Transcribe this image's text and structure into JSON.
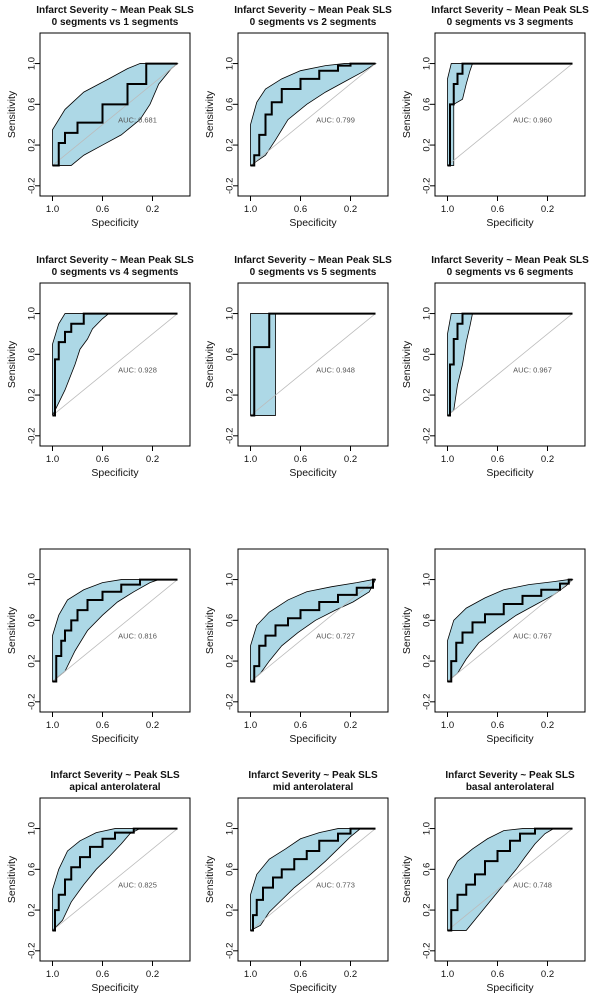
{
  "axes": {
    "xlabel": "Specificity",
    "ylabel": "Sensitivity",
    "x_ticks": [
      "1.0",
      "0.6",
      "0.2"
    ],
    "y_ticks": [
      "-0.2",
      "0.2",
      "0.6",
      "1.0"
    ],
    "x_tick_values": [
      1.0,
      0.6,
      0.2
    ],
    "y_tick_values": [
      -0.2,
      0.2,
      0.6,
      1.0
    ],
    "xlim": [
      1.1,
      -0.1
    ],
    "ylim": [
      -0.3,
      1.3
    ]
  },
  "colors": {
    "ci_band": "#add8e6",
    "roc_line": "#000000",
    "diagonal": "#bbbbbb",
    "auc_text": "#555555"
  },
  "chart_data": [
    {
      "type": "line",
      "title": "Infarct Severity ~ Mean Peak SLS",
      "subtitle": "0 segments vs 1 segments",
      "auc_label": "AUC: 0.681",
      "x": [
        1.0,
        0.95,
        0.95,
        0.9,
        0.9,
        0.8,
        0.8,
        0.6,
        0.6,
        0.4,
        0.4,
        0.25,
        0.25,
        0.0
      ],
      "y": [
        0.0,
        0.0,
        0.22,
        0.22,
        0.32,
        0.32,
        0.42,
        0.42,
        0.6,
        0.6,
        0.8,
        0.8,
        1.0,
        1.0
      ],
      "ci_upper": [
        [
          1.0,
          0.0
        ],
        [
          1.0,
          0.35
        ],
        [
          0.9,
          0.55
        ],
        [
          0.75,
          0.72
        ],
        [
          0.55,
          0.85
        ],
        [
          0.4,
          0.95
        ],
        [
          0.3,
          1.0
        ],
        [
          0.0,
          1.0
        ]
      ],
      "ci_lower": [
        [
          1.0,
          0.0
        ],
        [
          0.85,
          0.0
        ],
        [
          0.75,
          0.1
        ],
        [
          0.6,
          0.2
        ],
        [
          0.45,
          0.3
        ],
        [
          0.3,
          0.45
        ],
        [
          0.22,
          0.6
        ],
        [
          0.15,
          0.8
        ],
        [
          0.05,
          0.95
        ],
        [
          0.0,
          1.0
        ]
      ]
    },
    {
      "type": "line",
      "title": "Infarct Severity ~ Mean Peak SLS",
      "subtitle": "0 segments vs 2 segments",
      "auc_label": "AUC: 0.799",
      "x": [
        1.0,
        0.97,
        0.97,
        0.93,
        0.93,
        0.88,
        0.88,
        0.83,
        0.83,
        0.75,
        0.75,
        0.6,
        0.6,
        0.45,
        0.45,
        0.3,
        0.3,
        0.2,
        0.2,
        0.0
      ],
      "y": [
        0.0,
        0.0,
        0.1,
        0.1,
        0.3,
        0.3,
        0.5,
        0.5,
        0.62,
        0.62,
        0.75,
        0.75,
        0.85,
        0.85,
        0.93,
        0.93,
        0.98,
        0.98,
        1.0,
        1.0
      ],
      "ci_upper": [
        [
          1.0,
          0.0
        ],
        [
          1.0,
          0.4
        ],
        [
          0.95,
          0.62
        ],
        [
          0.88,
          0.75
        ],
        [
          0.75,
          0.85
        ],
        [
          0.6,
          0.93
        ],
        [
          0.4,
          0.98
        ],
        [
          0.25,
          1.0
        ],
        [
          0.0,
          1.0
        ]
      ],
      "ci_lower": [
        [
          1.0,
          0.0
        ],
        [
          0.88,
          0.1
        ],
        [
          0.8,
          0.25
        ],
        [
          0.7,
          0.45
        ],
        [
          0.55,
          0.6
        ],
        [
          0.4,
          0.72
        ],
        [
          0.25,
          0.82
        ],
        [
          0.1,
          0.92
        ],
        [
          0.0,
          1.0
        ]
      ]
    },
    {
      "type": "line",
      "title": "Infarct Severity ~ Mean Peak SLS",
      "subtitle": "0 segments vs 3 segments",
      "auc_label": "AUC: 0.960",
      "x": [
        1.0,
        0.98,
        0.98,
        0.95,
        0.95,
        0.92,
        0.92,
        0.88,
        0.88,
        0.0
      ],
      "y": [
        0.0,
        0.0,
        0.6,
        0.6,
        0.8,
        0.8,
        0.9,
        0.9,
        1.0,
        1.0
      ],
      "ci_upper": [
        [
          1.0,
          0.0
        ],
        [
          1.0,
          0.85
        ],
        [
          0.97,
          1.0
        ],
        [
          0.0,
          1.0
        ]
      ],
      "ci_lower": [
        [
          1.0,
          0.0
        ],
        [
          0.95,
          0.0
        ],
        [
          0.95,
          0.6
        ],
        [
          0.88,
          0.65
        ],
        [
          0.85,
          0.8
        ],
        [
          0.82,
          0.93
        ],
        [
          0.8,
          1.0
        ],
        [
          0.0,
          1.0
        ]
      ]
    },
    {
      "type": "line",
      "title": "Infarct Severity ~ Mean Peak SLS",
      "subtitle": "0 segments vs 4 segments",
      "auc_label": "AUC: 0.928",
      "x": [
        1.0,
        0.98,
        0.98,
        0.95,
        0.95,
        0.9,
        0.9,
        0.85,
        0.85,
        0.75,
        0.75,
        0.0
      ],
      "y": [
        0.0,
        0.0,
        0.55,
        0.55,
        0.72,
        0.72,
        0.82,
        0.82,
        0.9,
        0.9,
        1.0,
        1.0
      ],
      "ci_upper": [
        [
          1.0,
          0.0
        ],
        [
          1.0,
          0.7
        ],
        [
          0.95,
          0.9
        ],
        [
          0.9,
          1.0
        ],
        [
          0.0,
          1.0
        ]
      ],
      "ci_lower": [
        [
          1.0,
          0.0
        ],
        [
          0.9,
          0.25
        ],
        [
          0.82,
          0.5
        ],
        [
          0.78,
          0.65
        ],
        [
          0.72,
          0.75
        ],
        [
          0.68,
          0.85
        ],
        [
          0.6,
          0.95
        ],
        [
          0.55,
          1.0
        ],
        [
          0.0,
          1.0
        ]
      ]
    },
    {
      "type": "line",
      "title": "Infarct Severity ~ Mean Peak SLS",
      "subtitle": "0 segments vs 5 segments",
      "auc_label": "AUC: 0.948",
      "x": [
        1.0,
        0.97,
        0.97,
        0.85,
        0.85,
        0.0
      ],
      "y": [
        0.0,
        0.0,
        0.67,
        0.67,
        1.0,
        1.0
      ],
      "ci_upper": [
        [
          1.0,
          0.0
        ],
        [
          1.0,
          1.0
        ],
        [
          0.0,
          1.0
        ]
      ],
      "ci_lower": [
        [
          1.0,
          0.0
        ],
        [
          0.8,
          0.0
        ],
        [
          0.8,
          1.0
        ],
        [
          0.0,
          1.0
        ]
      ]
    },
    {
      "type": "line",
      "title": "Infarct Severity ~ Mean Peak SLS",
      "subtitle": "0 segments vs 6 segments",
      "auc_label": "AUC: 0.967",
      "x": [
        1.0,
        0.98,
        0.98,
        0.95,
        0.95,
        0.92,
        0.92,
        0.88,
        0.88,
        0.0
      ],
      "y": [
        0.0,
        0.0,
        0.5,
        0.5,
        0.75,
        0.75,
        0.9,
        0.9,
        1.0,
        1.0
      ],
      "ci_upper": [
        [
          1.0,
          0.0
        ],
        [
          1.0,
          0.8
        ],
        [
          0.97,
          1.0
        ],
        [
          0.0,
          1.0
        ]
      ],
      "ci_lower": [
        [
          1.0,
          0.0
        ],
        [
          0.95,
          0.05
        ],
        [
          0.92,
          0.3
        ],
        [
          0.88,
          0.5
        ],
        [
          0.85,
          0.72
        ],
        [
          0.82,
          0.88
        ],
        [
          0.8,
          1.0
        ],
        [
          0.0,
          1.0
        ]
      ]
    },
    {
      "type": "line",
      "title": "",
      "subtitle": "",
      "auc_label": "AUC: 0.816",
      "x": [
        1.0,
        0.97,
        0.97,
        0.93,
        0.93,
        0.9,
        0.9,
        0.85,
        0.85,
        0.8,
        0.8,
        0.72,
        0.72,
        0.6,
        0.6,
        0.45,
        0.45,
        0.3,
        0.3,
        0.0
      ],
      "y": [
        0.0,
        0.0,
        0.25,
        0.25,
        0.4,
        0.4,
        0.5,
        0.5,
        0.6,
        0.6,
        0.7,
        0.7,
        0.8,
        0.8,
        0.88,
        0.88,
        0.95,
        0.95,
        1.0,
        1.0
      ],
      "ci_upper": [
        [
          1.0,
          0.0
        ],
        [
          1.0,
          0.45
        ],
        [
          0.95,
          0.65
        ],
        [
          0.88,
          0.8
        ],
        [
          0.75,
          0.9
        ],
        [
          0.6,
          0.97
        ],
        [
          0.45,
          1.0
        ],
        [
          0.0,
          1.0
        ]
      ],
      "ci_lower": [
        [
          1.0,
          0.0
        ],
        [
          0.9,
          0.1
        ],
        [
          0.82,
          0.3
        ],
        [
          0.72,
          0.5
        ],
        [
          0.6,
          0.65
        ],
        [
          0.48,
          0.78
        ],
        [
          0.35,
          0.88
        ],
        [
          0.22,
          0.97
        ],
        [
          0.15,
          1.0
        ],
        [
          0.0,
          1.0
        ]
      ]
    },
    {
      "type": "line",
      "title": "",
      "subtitle": "",
      "auc_label": "AUC: 0.727",
      "x": [
        1.0,
        0.97,
        0.97,
        0.93,
        0.93,
        0.88,
        0.88,
        0.8,
        0.8,
        0.7,
        0.7,
        0.6,
        0.6,
        0.45,
        0.45,
        0.3,
        0.3,
        0.15,
        0.15,
        0.02,
        0.02,
        0.0
      ],
      "y": [
        0.0,
        0.0,
        0.15,
        0.15,
        0.35,
        0.35,
        0.45,
        0.45,
        0.55,
        0.55,
        0.62,
        0.62,
        0.7,
        0.7,
        0.78,
        0.78,
        0.85,
        0.85,
        0.92,
        0.92,
        1.0,
        1.0
      ],
      "ci_upper": [
        [
          1.0,
          0.0
        ],
        [
          1.0,
          0.35
        ],
        [
          0.95,
          0.55
        ],
        [
          0.85,
          0.68
        ],
        [
          0.7,
          0.8
        ],
        [
          0.55,
          0.88
        ],
        [
          0.35,
          0.93
        ],
        [
          0.15,
          0.97
        ],
        [
          0.02,
          1.0
        ],
        [
          0.0,
          1.0
        ]
      ],
      "ci_lower": [
        [
          1.0,
          0.0
        ],
        [
          0.92,
          0.08
        ],
        [
          0.85,
          0.2
        ],
        [
          0.75,
          0.35
        ],
        [
          0.62,
          0.48
        ],
        [
          0.48,
          0.6
        ],
        [
          0.32,
          0.7
        ],
        [
          0.18,
          0.78
        ],
        [
          0.05,
          0.88
        ],
        [
          0.0,
          1.0
        ]
      ]
    },
    {
      "type": "line",
      "title": "",
      "subtitle": "",
      "auc_label": "AUC: 0.767",
      "x": [
        1.0,
        0.97,
        0.97,
        0.93,
        0.93,
        0.88,
        0.88,
        0.8,
        0.8,
        0.7,
        0.7,
        0.55,
        0.55,
        0.4,
        0.4,
        0.25,
        0.25,
        0.1,
        0.1,
        0.03,
        0.03,
        0.0
      ],
      "y": [
        0.0,
        0.0,
        0.2,
        0.2,
        0.38,
        0.38,
        0.48,
        0.48,
        0.58,
        0.58,
        0.66,
        0.66,
        0.76,
        0.76,
        0.84,
        0.84,
        0.9,
        0.9,
        0.96,
        0.96,
        1.0,
        1.0
      ],
      "ci_upper": [
        [
          1.0,
          0.0
        ],
        [
          1.0,
          0.4
        ],
        [
          0.95,
          0.6
        ],
        [
          0.85,
          0.72
        ],
        [
          0.7,
          0.82
        ],
        [
          0.55,
          0.9
        ],
        [
          0.35,
          0.95
        ],
        [
          0.15,
          0.98
        ],
        [
          0.03,
          1.0
        ],
        [
          0.0,
          1.0
        ]
      ],
      "ci_lower": [
        [
          1.0,
          0.0
        ],
        [
          0.92,
          0.08
        ],
        [
          0.85,
          0.22
        ],
        [
          0.75,
          0.38
        ],
        [
          0.6,
          0.52
        ],
        [
          0.45,
          0.65
        ],
        [
          0.3,
          0.75
        ],
        [
          0.15,
          0.85
        ],
        [
          0.05,
          0.94
        ],
        [
          0.0,
          1.0
        ]
      ]
    },
    {
      "type": "line",
      "title": "Infarct Severity ~ Peak SLS",
      "subtitle": "apical anterolateral",
      "auc_label": "AUC: 0.825",
      "x": [
        1.0,
        0.98,
        0.98,
        0.95,
        0.95,
        0.9,
        0.9,
        0.85,
        0.85,
        0.78,
        0.78,
        0.7,
        0.7,
        0.6,
        0.6,
        0.5,
        0.5,
        0.35,
        0.35,
        0.0
      ],
      "y": [
        0.0,
        0.0,
        0.2,
        0.2,
        0.35,
        0.35,
        0.5,
        0.5,
        0.62,
        0.62,
        0.72,
        0.72,
        0.82,
        0.82,
        0.9,
        0.9,
        0.96,
        0.96,
        1.0,
        1.0
      ],
      "ci_upper": [
        [
          1.0,
          0.0
        ],
        [
          1.0,
          0.4
        ],
        [
          0.95,
          0.6
        ],
        [
          0.88,
          0.78
        ],
        [
          0.78,
          0.88
        ],
        [
          0.65,
          0.96
        ],
        [
          0.5,
          1.0
        ],
        [
          0.0,
          1.0
        ]
      ],
      "ci_lower": [
        [
          1.0,
          0.0
        ],
        [
          0.92,
          0.1
        ],
        [
          0.85,
          0.28
        ],
        [
          0.75,
          0.45
        ],
        [
          0.65,
          0.6
        ],
        [
          0.55,
          0.72
        ],
        [
          0.45,
          0.85
        ],
        [
          0.38,
          0.95
        ],
        [
          0.3,
          1.0
        ],
        [
          0.0,
          1.0
        ]
      ]
    },
    {
      "type": "line",
      "title": "Infarct Severity ~ Peak SLS",
      "subtitle": "mid anterolateral",
      "auc_label": "AUC: 0.773",
      "x": [
        1.0,
        0.98,
        0.98,
        0.95,
        0.95,
        0.9,
        0.9,
        0.82,
        0.82,
        0.75,
        0.75,
        0.65,
        0.65,
        0.55,
        0.55,
        0.45,
        0.45,
        0.3,
        0.3,
        0.2,
        0.2,
        0.0
      ],
      "y": [
        0.0,
        0.0,
        0.15,
        0.15,
        0.3,
        0.3,
        0.42,
        0.42,
        0.52,
        0.52,
        0.6,
        0.6,
        0.7,
        0.7,
        0.78,
        0.78,
        0.88,
        0.88,
        0.95,
        0.95,
        1.0,
        1.0
      ],
      "ci_upper": [
        [
          1.0,
          0.0
        ],
        [
          1.0,
          0.35
        ],
        [
          0.95,
          0.55
        ],
        [
          0.85,
          0.7
        ],
        [
          0.72,
          0.8
        ],
        [
          0.6,
          0.9
        ],
        [
          0.45,
          0.96
        ],
        [
          0.3,
          1.0
        ],
        [
          0.0,
          1.0
        ]
      ],
      "ci_lower": [
        [
          1.0,
          0.0
        ],
        [
          0.92,
          0.05
        ],
        [
          0.85,
          0.18
        ],
        [
          0.75,
          0.3
        ],
        [
          0.65,
          0.42
        ],
        [
          0.52,
          0.55
        ],
        [
          0.4,
          0.68
        ],
        [
          0.3,
          0.8
        ],
        [
          0.2,
          0.92
        ],
        [
          0.12,
          1.0
        ],
        [
          0.0,
          1.0
        ]
      ]
    },
    {
      "type": "line",
      "title": "Infarct Severity ~ Peak SLS",
      "subtitle": "basal anterolateral",
      "auc_label": "AUC: 0.748",
      "x": [
        1.0,
        0.97,
        0.97,
        0.92,
        0.92,
        0.85,
        0.85,
        0.78,
        0.78,
        0.7,
        0.7,
        0.6,
        0.6,
        0.5,
        0.5,
        0.42,
        0.42,
        0.3,
        0.3,
        0.0
      ],
      "y": [
        0.0,
        0.0,
        0.2,
        0.2,
        0.35,
        0.35,
        0.45,
        0.45,
        0.55,
        0.55,
        0.68,
        0.68,
        0.78,
        0.78,
        0.88,
        0.88,
        0.95,
        0.95,
        1.0,
        1.0
      ],
      "ci_upper": [
        [
          1.0,
          0.0
        ],
        [
          1.0,
          0.5
        ],
        [
          0.92,
          0.68
        ],
        [
          0.8,
          0.8
        ],
        [
          0.68,
          0.9
        ],
        [
          0.55,
          0.98
        ],
        [
          0.4,
          1.0
        ],
        [
          0.0,
          1.0
        ]
      ],
      "ci_lower": [
        [
          1.0,
          0.0
        ],
        [
          0.85,
          0.0
        ],
        [
          0.75,
          0.15
        ],
        [
          0.65,
          0.3
        ],
        [
          0.55,
          0.45
        ],
        [
          0.45,
          0.6
        ],
        [
          0.38,
          0.72
        ],
        [
          0.3,
          0.85
        ],
        [
          0.22,
          0.95
        ],
        [
          0.15,
          1.0
        ],
        [
          0.0,
          1.0
        ]
      ]
    }
  ]
}
